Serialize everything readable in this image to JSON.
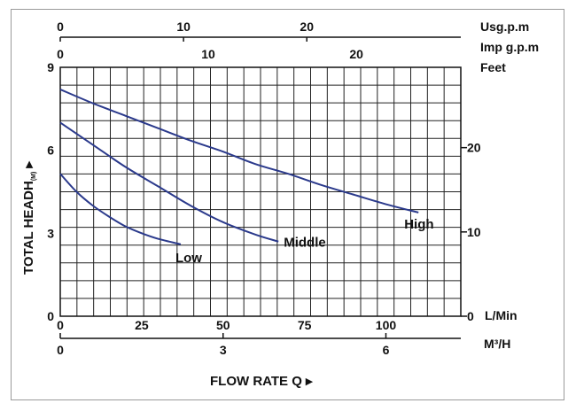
{
  "chart_data": {
    "type": "line",
    "xlabel": "FLOW RATE Q ▸",
    "ylabel": "TOTAL HEADH (M) ▸",
    "ylabel_main": "TOTAL HEADH",
    "ylabel_sub": "(M)",
    "ylabel_arrow": "▸",
    "xlim": [
      0,
      123
    ],
    "ylim": [
      0,
      9
    ],
    "grid": true,
    "axes": {
      "lpm": {
        "label": "L/Min",
        "ticks": [
          {
            "v": 0,
            "t": "0"
          },
          {
            "v": 25,
            "t": "25"
          },
          {
            "v": 50,
            "t": "50"
          },
          {
            "v": 75,
            "t": "75"
          },
          {
            "v": 100,
            "t": "100"
          }
        ]
      },
      "m3h": {
        "label": "M³/H",
        "ticks": [
          {
            "v": 0,
            "t": "0"
          },
          {
            "v": 3,
            "t": "3"
          },
          {
            "v": 6,
            "t": "6"
          }
        ]
      },
      "usgpm": {
        "label": "Usg.p.m",
        "ticks": [
          {
            "v": 0,
            "t": "0"
          },
          {
            "v": 10,
            "t": "10"
          },
          {
            "v": 20,
            "t": "20"
          }
        ]
      },
      "impgpm": {
        "label": "Imp g.p.m",
        "ticks": [
          {
            "v": 0,
            "t": "0"
          },
          {
            "v": 10,
            "t": "10"
          },
          {
            "v": 20,
            "t": "20"
          }
        ]
      },
      "meters": {
        "ticks": [
          {
            "v": 0,
            "t": "0"
          },
          {
            "v": 3,
            "t": "3"
          },
          {
            "v": 6,
            "t": "6"
          },
          {
            "v": 9,
            "t": "9"
          }
        ]
      },
      "feet": {
        "label": "Feet",
        "ticks": [
          {
            "v": 0,
            "t": "0"
          },
          {
            "v": 10,
            "t": "10"
          },
          {
            "v": 20,
            "t": "20"
          }
        ]
      }
    },
    "series": [
      {
        "name": "High",
        "color": "#2b3a8c",
        "x": [
          0,
          10,
          20,
          30,
          40,
          50,
          60,
          70,
          80,
          90,
          100,
          110
        ],
        "y": [
          8.2,
          7.7,
          7.25,
          6.8,
          6.35,
          5.95,
          5.5,
          5.15,
          4.75,
          4.4,
          4.05,
          3.75
        ]
      },
      {
        "name": "Middle",
        "color": "#2b3a8c",
        "x": [
          0,
          10,
          20,
          30,
          40,
          50,
          60,
          67
        ],
        "y": [
          7.0,
          6.2,
          5.4,
          4.7,
          4.0,
          3.4,
          2.95,
          2.7
        ]
      },
      {
        "name": "Low",
        "color": "#2b3a8c",
        "x": [
          0,
          5,
          10,
          15,
          20,
          25,
          30,
          37
        ],
        "y": [
          5.15,
          4.5,
          4.0,
          3.6,
          3.25,
          3.0,
          2.8,
          2.6
        ]
      }
    ]
  }
}
